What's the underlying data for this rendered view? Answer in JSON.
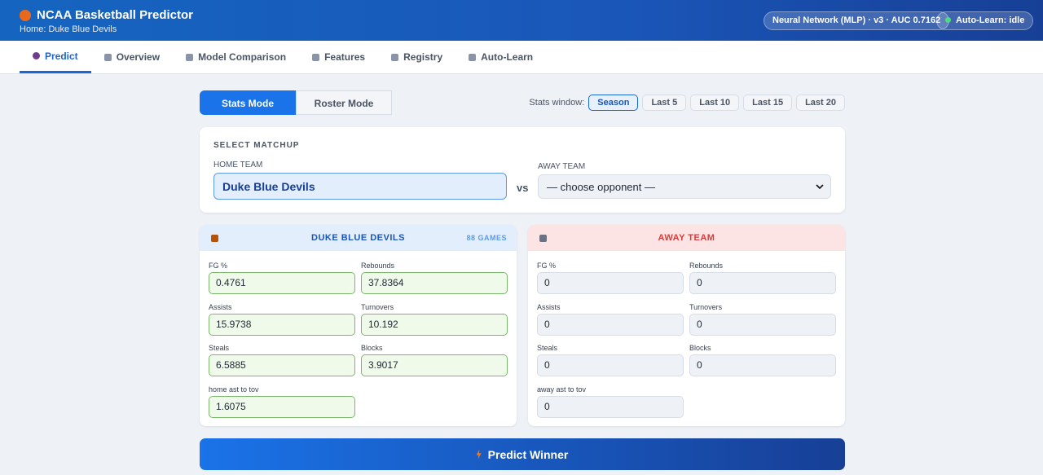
{
  "header": {
    "title": "NCAA Basketball Predictor",
    "subtitle": "Home: Duke Blue Devils",
    "model_badge": "Neural Network (MLP) · v3 · AUC 0.7162",
    "autolearn_badge": "Auto-Learn: idle"
  },
  "tabs": [
    "Predict",
    "Overview",
    "Model Comparison",
    "Features",
    "Registry",
    "Auto-Learn"
  ],
  "modes": [
    "Stats Mode",
    "Roster Mode"
  ],
  "stats_window": {
    "label": "Stats window:",
    "options": [
      "Season",
      "Last 5",
      "Last 10",
      "Last 15",
      "Last 20"
    ]
  },
  "matchup": {
    "heading": "SELECT MATCHUP",
    "home_label": "HOME TEAM",
    "home_value": "Duke Blue Devils",
    "vs": "vs",
    "away_label": "AWAY TEAM",
    "away_placeholder": "— choose opponent —"
  },
  "home_panel": {
    "title": "DUKE BLUE DEVILS",
    "games": "88 GAMES",
    "fields": [
      {
        "label": "FG %",
        "value": 0.4761
      },
      {
        "label": "Rebounds",
        "value": 37.8364
      },
      {
        "label": "Assists",
        "value": 15.9738
      },
      {
        "label": "Turnovers",
        "value": 10.192
      },
      {
        "label": "Steals",
        "value": 6.5885
      },
      {
        "label": "Blocks",
        "value": 3.9017
      },
      {
        "label": "home ast to tov",
        "value": 1.6075
      }
    ]
  },
  "away_panel": {
    "title": "AWAY TEAM",
    "fields": [
      {
        "label": "FG %",
        "value": 0
      },
      {
        "label": "Rebounds",
        "value": 0
      },
      {
        "label": "Assists",
        "value": 0
      },
      {
        "label": "Turnovers",
        "value": 0
      },
      {
        "label": "Steals",
        "value": 0
      },
      {
        "label": "Blocks",
        "value": 0
      },
      {
        "label": "away ast to tov",
        "value": 0
      }
    ]
  },
  "predict_button": "Predict Winner"
}
